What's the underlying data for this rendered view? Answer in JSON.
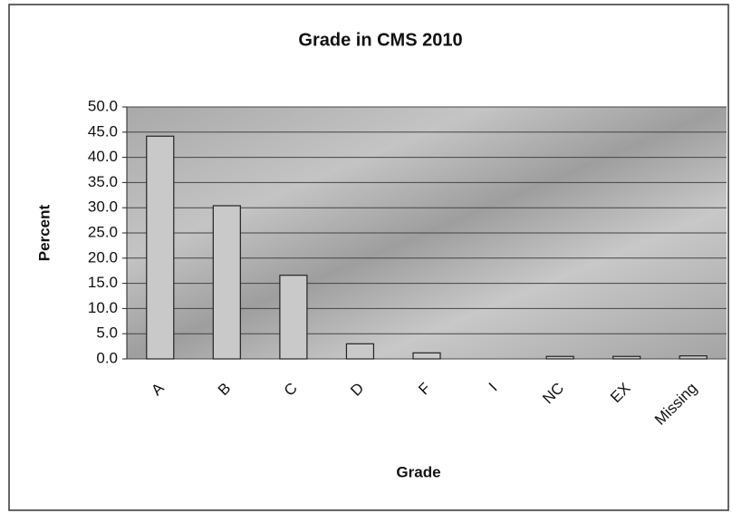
{
  "chart_data": {
    "type": "bar",
    "title": "Grade in CMS 2010",
    "x_label": "Grade",
    "y_label": "Percent",
    "categories": [
      "A",
      "B",
      "C",
      "D",
      "F",
      "I",
      "NC",
      "EX",
      "Missing"
    ],
    "values": [
      44.2,
      30.4,
      16.6,
      3.0,
      1.2,
      0,
      0.5,
      0.5,
      0.6
    ],
    "color": "#c9c9c9",
    "ylim": [
      0,
      50
    ],
    "yticks": [
      {
        "value": 0,
        "label": "0.0"
      },
      {
        "value": 5,
        "label": "5.0"
      },
      {
        "value": 10,
        "label": "10.0"
      },
      {
        "value": 15,
        "label": "15.0"
      },
      {
        "value": 20,
        "label": "20.0"
      },
      {
        "value": 25,
        "label": "25.0"
      },
      {
        "value": 30,
        "label": "30.0"
      },
      {
        "value": 35,
        "label": "35.0"
      },
      {
        "value": 40,
        "label": "40.0"
      },
      {
        "value": 45,
        "label": "45.0"
      },
      {
        "value": 50,
        "label": "50.0"
      }
    ],
    "grid": true
  }
}
